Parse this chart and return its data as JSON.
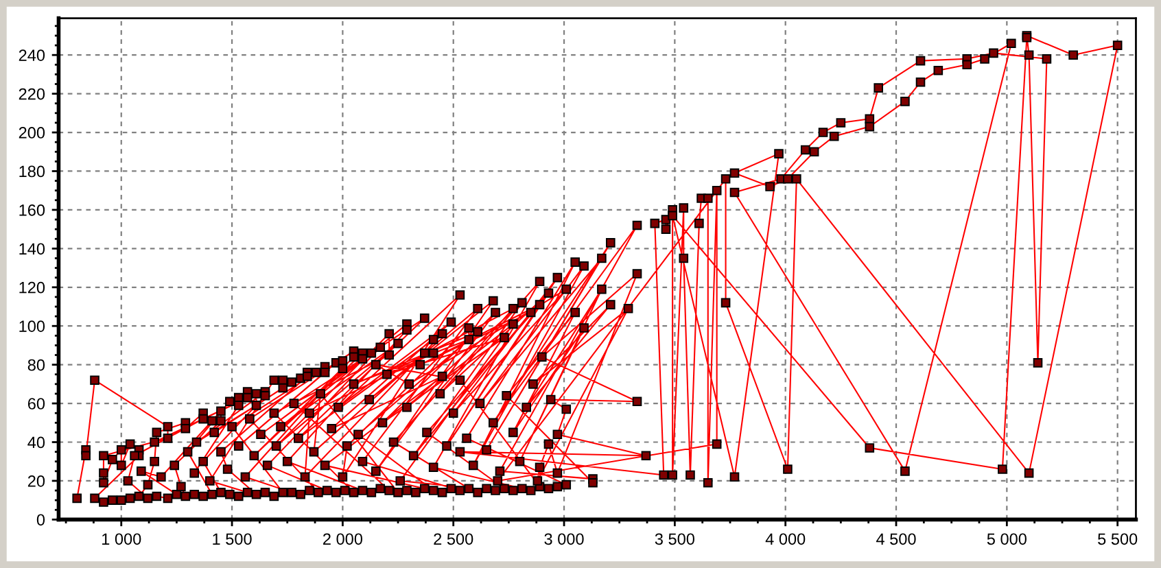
{
  "chart_data": {
    "type": "line",
    "marker": "square",
    "line_style": "solid",
    "grid": true,
    "xlim": [
      717,
      5583
    ],
    "ylim": [
      0,
      259
    ],
    "xticks": [
      {
        "value": 750,
        "label": null
      },
      {
        "value": 875,
        "label": null
      },
      {
        "value": 1000,
        "label": "1 000"
      },
      {
        "value": 1125,
        "label": null
      },
      {
        "value": 1250,
        "label": null
      },
      {
        "value": 1375,
        "label": null
      },
      {
        "value": 1500,
        "label": "1 500"
      },
      {
        "value": 1625,
        "label": null
      },
      {
        "value": 1750,
        "label": null
      },
      {
        "value": 1875,
        "label": null
      },
      {
        "value": 2000,
        "label": "2 000"
      },
      {
        "value": 2125,
        "label": null
      },
      {
        "value": 2250,
        "label": null
      },
      {
        "value": 2375,
        "label": null
      },
      {
        "value": 2500,
        "label": "2 500"
      },
      {
        "value": 2625,
        "label": null
      },
      {
        "value": 2750,
        "label": null
      },
      {
        "value": 2875,
        "label": null
      },
      {
        "value": 3000,
        "label": "3 000"
      },
      {
        "value": 3125,
        "label": null
      },
      {
        "value": 3250,
        "label": null
      },
      {
        "value": 3375,
        "label": null
      },
      {
        "value": 3500,
        "label": "3 500"
      },
      {
        "value": 3625,
        "label": null
      },
      {
        "value": 3750,
        "label": null
      },
      {
        "value": 3875,
        "label": null
      },
      {
        "value": 4000,
        "label": "4 000"
      },
      {
        "value": 4125,
        "label": null
      },
      {
        "value": 4250,
        "label": null
      },
      {
        "value": 4375,
        "label": null
      },
      {
        "value": 4500,
        "label": "4 500"
      },
      {
        "value": 4625,
        "label": null
      },
      {
        "value": 4750,
        "label": null
      },
      {
        "value": 4875,
        "label": null
      },
      {
        "value": 5000,
        "label": "5 000"
      },
      {
        "value": 5125,
        "label": null
      },
      {
        "value": 5250,
        "label": null
      },
      {
        "value": 5375,
        "label": null
      },
      {
        "value": 5500,
        "label": "5 500"
      }
    ],
    "yticks": [
      0,
      {
        "value": 5,
        "label": null
      },
      {
        "value": 10,
        "label": null
      },
      {
        "value": 15,
        "label": null
      },
      20,
      {
        "value": 25,
        "label": null
      },
      {
        "value": 30,
        "label": null
      },
      {
        "value": 35,
        "label": null
      },
      40,
      {
        "value": 45,
        "label": null
      },
      {
        "value": 50,
        "label": null
      },
      {
        "value": 55,
        "label": null
      },
      60,
      {
        "value": 65,
        "label": null
      },
      {
        "value": 70,
        "label": null
      },
      {
        "value": 75,
        "label": null
      },
      80,
      {
        "value": 85,
        "label": null
      },
      {
        "value": 90,
        "label": null
      },
      {
        "value": 95,
        "label": null
      },
      100,
      {
        "value": 105,
        "label": null
      },
      {
        "value": 110,
        "label": null
      },
      {
        "value": 115,
        "label": null
      },
      120,
      {
        "value": 125,
        "label": null
      },
      {
        "value": 130,
        "label": null
      },
      {
        "value": 135,
        "label": null
      },
      140,
      {
        "value": 145,
        "label": null
      },
      {
        "value": 150,
        "label": null
      },
      {
        "value": 155,
        "label": null
      },
      160,
      {
        "value": 165,
        "label": null
      },
      {
        "value": 170,
        "label": null
      },
      {
        "value": 175,
        "label": null
      },
      180,
      {
        "value": 185,
        "label": null
      },
      {
        "value": 190,
        "label": null
      },
      {
        "value": 195,
        "label": null
      },
      200,
      {
        "value": 205,
        "label": null
      },
      {
        "value": 210,
        "label": null
      },
      {
        "value": 215,
        "label": null
      },
      220,
      {
        "value": 225,
        "label": null
      },
      {
        "value": 230,
        "label": null
      },
      {
        "value": 235,
        "label": null
      },
      240,
      {
        "value": 245,
        "label": null
      },
      {
        "value": 250,
        "label": null
      },
      {
        "value": 255,
        "label": null
      }
    ],
    "x": [
      800,
      840,
      840,
      880,
      1210,
      1210,
      920,
      920,
      920,
      960,
      1000,
      1000,
      1040,
      1080,
      1080,
      880,
      920,
      960,
      1000,
      1040,
      1080,
      1120,
      1150,
      1160,
      1290,
      1290,
      1370,
      1370,
      1060,
      1030,
      1120,
      1160,
      1210,
      1250,
      1090,
      1180,
      1410,
      1450,
      1450,
      1240,
      1270,
      1290,
      1330,
      1370,
      1410,
      1300,
      1490,
      1530,
      1530,
      1330,
      1570,
      1570,
      1150,
      1610,
      1610,
      1340,
      1650,
      1650,
      1370,
      1450,
      1490,
      1530,
      1570,
      1400,
      1690,
      1730,
      1730,
      1420,
      1770,
      1810,
      1840,
      1840,
      1450,
      1480,
      1610,
      1650,
      1690,
      1730,
      1500,
      1880,
      1920,
      1920,
      1530,
      1970,
      2000,
      2000,
      1560,
      1770,
      1810,
      1850,
      1890,
      1580,
      2050,
      2050,
      1600,
      2090,
      2090,
      1630,
      2130,
      2170,
      1660,
      1930,
      1970,
      2010,
      2050,
      1690,
      2210,
      2210,
      1700,
      2250,
      1720,
      2290,
      2290,
      1750,
      2090,
      2130,
      2170,
      2210,
      1780,
      2370,
      1800,
      2410,
      2450,
      1830,
      1850,
      2410,
      2370,
      1870,
      1900,
      2250,
      2290,
      2330,
      2370,
      1920,
      2450,
      1950,
      2490,
      1980,
      2530,
      2000,
      2020,
      2570,
      2570,
      2050,
      2610,
      2070,
      2410,
      2450,
      2490,
      2530,
      2090,
      2610,
      2120,
      2680,
      2150,
      2690,
      2180,
      2730,
      2200,
      2770,
      2230,
      2570,
      2610,
      2650,
      2690,
      2260,
      2770,
      2290,
      2810,
      2320,
      2850,
      2350,
      2890,
      2380,
      2730,
      2770,
      2810,
      2850,
      2410,
      2890,
      2440,
      2930,
      2470,
      2970,
      2500,
      3010,
      2300,
      2150,
      2530,
      2890,
      2930,
      2970,
      3010,
      2560,
      3050,
      2590,
      3090,
      2620,
      3170,
      2650,
      3210,
      2680,
      3330,
      2710,
      3130,
      3130,
      2740,
      3050,
      2770,
      3090,
      2800,
      3170,
      2830,
      3210,
      2860,
      3290,
      2880,
      2890,
      2930,
      2970,
      3330,
      2900,
      3330,
      2940,
      3010,
      2970,
      3370,
      2530,
      3450,
      3410,
      3460,
      3460,
      3490,
      3490,
      3540,
      3540,
      3570,
      3610,
      3620,
      3650,
      3650,
      3690,
      3690,
      2700,
      3730,
      3730,
      4010,
      4050,
      5100,
      5500,
      5300,
      5090,
      5100,
      5140,
      5180,
      4940,
      4820,
      4610,
      4420,
      4380,
      4250,
      4170,
      4090,
      3980,
      3770,
      4540,
      5020,
      4900,
      4820,
      4690,
      4610,
      4540,
      4380,
      4220,
      4130,
      4010,
      3930,
      3770,
      3970,
      3770,
      3490,
      4380,
      4980,
      5090
    ],
    "series": [
      {
        "color": "#ff0000",
        "values": [
          11,
          36,
          33,
          72,
          48,
          42,
          33,
          24,
          19,
          31,
          36,
          28,
          39,
          36,
          33,
          11,
          9,
          10,
          10,
          11,
          12,
          18,
          30,
          45,
          50,
          47,
          55,
          52,
          33,
          20,
          11,
          12,
          11,
          13,
          25,
          22,
          51,
          56,
          51,
          28,
          17,
          12,
          13,
          12,
          13,
          35,
          61,
          63,
          59,
          24,
          66,
          63,
          40,
          65,
          59,
          40,
          66,
          64,
          30,
          14,
          13,
          12,
          14,
          20,
          72,
          72,
          68,
          45,
          71,
          73,
          76,
          74,
          35,
          26,
          13,
          14,
          12,
          14,
          48,
          76,
          79,
          76,
          38,
          81,
          82,
          78,
          22,
          14,
          13,
          15,
          14,
          52,
          87,
          84,
          33,
          86,
          83,
          44,
          86,
          89,
          28,
          15,
          14,
          15,
          14,
          55,
          85,
          96,
          38,
          91,
          48,
          101,
          98,
          30,
          15,
          14,
          16,
          15,
          60,
          104,
          42,
          93,
          96,
          22,
          55,
          86,
          86,
          35,
          65,
          14,
          15,
          14,
          16,
          28,
          74,
          47,
          102,
          58,
          116,
          22,
          38,
          99,
          93,
          70,
          97,
          44,
          15,
          14,
          16,
          15,
          30,
          109,
          62,
          113,
          25,
          107,
          50,
          94,
          75,
          109,
          40,
          16,
          14,
          16,
          15,
          20,
          101,
          58,
          112,
          33,
          107,
          80,
          111,
          45,
          16,
          15,
          16,
          15,
          27,
          123,
          65,
          117,
          38,
          125,
          55,
          119,
          70,
          80,
          72,
          17,
          16,
          17,
          18,
          42,
          133,
          28,
          131,
          60,
          135,
          36,
          143,
          50,
          152,
          25,
          21,
          19,
          64,
          107,
          45,
          99,
          30,
          119,
          58,
          111,
          70,
          109,
          20,
          27,
          39,
          24,
          127,
          84,
          61,
          62,
          57,
          44,
          33,
          35,
          23,
          153,
          155,
          150,
          160,
          23,
          161,
          135,
          23,
          153,
          166,
          166,
          19,
          170,
          39,
          20,
          176,
          112,
          26,
          176,
          24,
          245,
          240,
          250,
          240,
          81,
          238,
          241,
          238,
          237,
          223,
          207,
          205,
          200,
          191,
          176,
          169,
          25,
          246,
          238,
          235,
          232,
          226,
          216,
          203,
          198,
          190,
          176,
          172,
          179,
          189,
          22,
          157,
          37,
          26,
          249
        ]
      }
    ]
  }
}
